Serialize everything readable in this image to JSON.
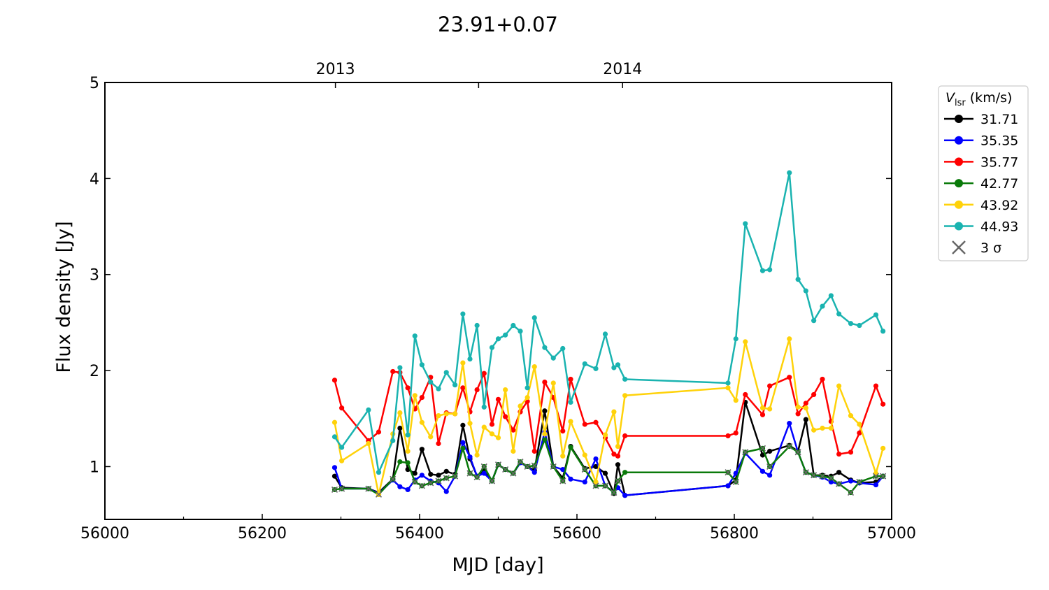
{
  "chart_data": {
    "type": "line",
    "title": "23.91+0.07",
    "xlabel": "MJD [day]",
    "ylabel": "Flux density [Jy]",
    "xlim": [
      56000,
      57000
    ],
    "ylim": [
      0.45,
      5
    ],
    "xticks": [
      56000,
      56200,
      56400,
      56600,
      56800,
      57000
    ],
    "xtick_labels": [
      "56000",
      "56200",
      "56400",
      "56600",
      "56800",
      "57000"
    ],
    "xminor": [
      56100,
      56300,
      56500,
      56700,
      56900
    ],
    "yticks": [
      1,
      2,
      3,
      4,
      5
    ],
    "ytick_labels": [
      "1",
      "2",
      "3",
      "4",
      "5"
    ],
    "top_axis": {
      "ticks": [
        56293,
        56475,
        56658
      ],
      "labels": [
        "2013",
        "",
        "2014"
      ]
    },
    "legend": {
      "title_main": "V",
      "title_sub": "lsr",
      "title_unit": " (km/s)",
      "placement": "outside-right",
      "sigma_label": "3 σ"
    },
    "x": [
      56292,
      56301,
      56335,
      56348,
      56366,
      56375,
      56385,
      56394,
      56403,
      56414,
      56424,
      56434,
      56445,
      56455,
      56464,
      56473,
      56482,
      56492,
      56500,
      56509,
      56519,
      56528,
      56537,
      56546,
      56559,
      56570,
      56582,
      56592,
      56610,
      56624,
      56636,
      56647,
      56652,
      56661,
      56792,
      56802,
      56814,
      56836,
      56845,
      56870,
      56881,
      56891,
      56901,
      56912,
      56923,
      56933,
      56948,
      56959,
      56980,
      56989
    ],
    "series": [
      {
        "name": "31.71",
        "color": "#000000",
        "values": [
          0.9,
          0.78,
          0.77,
          0.73,
          0.87,
          1.4,
          0.97,
          0.93,
          1.18,
          0.92,
          0.91,
          0.95,
          0.92,
          1.43,
          1.08,
          0.9,
          0.95,
          0.85,
          1.02,
          0.97,
          0.93,
          1.04,
          1.0,
          0.96,
          1.58,
          1.0,
          0.88,
          1.21,
          0.98,
          1.0,
          0.93,
          0.72,
          1.02,
          0.7,
          0.8,
          0.86,
          1.67,
          1.12,
          1.16,
          1.22,
          1.16,
          1.49,
          0.91,
          0.91,
          0.9,
          0.94,
          0.86,
          0.83,
          0.84,
          0.9
        ]
      },
      {
        "name": "35.35",
        "color": "#0000ff",
        "values": [
          0.99,
          0.77,
          0.77,
          0.72,
          0.86,
          0.79,
          0.76,
          0.86,
          0.91,
          0.85,
          0.83,
          0.74,
          0.9,
          1.25,
          1.1,
          0.9,
          0.93,
          0.85,
          1.02,
          0.97,
          0.93,
          1.04,
          1.0,
          0.94,
          1.36,
          1.0,
          0.97,
          0.87,
          0.84,
          1.08,
          0.8,
          0.73,
          0.78,
          0.7,
          0.8,
          0.93,
          1.14,
          0.95,
          0.91,
          1.45,
          1.15,
          0.94,
          0.91,
          0.89,
          0.84,
          0.82,
          0.85,
          0.83,
          0.81,
          0.9
        ]
      },
      {
        "name": "35.77",
        "color": "#ff0000",
        "values": [
          1.9,
          1.61,
          1.27,
          1.36,
          1.99,
          1.98,
          1.82,
          1.6,
          1.72,
          1.93,
          1.24,
          1.56,
          1.55,
          1.82,
          1.57,
          1.8,
          1.97,
          1.44,
          1.7,
          1.52,
          1.38,
          1.57,
          1.68,
          1.16,
          1.88,
          1.72,
          1.37,
          1.91,
          1.44,
          1.46,
          1.3,
          1.13,
          1.11,
          1.32,
          1.32,
          1.35,
          1.75,
          1.54,
          1.84,
          1.93,
          1.55,
          1.66,
          1.75,
          1.91,
          1.47,
          1.13,
          1.15,
          1.35,
          1.84,
          1.65
        ]
      },
      {
        "name": "42.77",
        "color": "#0a7a0a",
        "values": [
          0.76,
          0.77,
          0.77,
          0.71,
          0.87,
          1.05,
          1.04,
          0.84,
          0.8,
          0.83,
          0.85,
          0.88,
          0.9,
          1.19,
          0.93,
          0.89,
          1.0,
          0.85,
          1.02,
          0.97,
          0.93,
          1.05,
          1.0,
          1.01,
          1.28,
          1.0,
          0.85,
          1.2,
          0.97,
          0.8,
          0.8,
          0.73,
          0.85,
          0.94,
          0.94,
          0.84,
          1.15,
          1.19,
          1.0,
          1.21,
          1.15,
          0.94,
          0.91,
          0.9,
          0.88,
          0.82,
          0.73,
          0.84,
          0.9,
          0.9
        ]
      },
      {
        "name": "43.92",
        "color": "#ffd20a",
        "values": [
          1.46,
          1.06,
          1.24,
          0.71,
          1.34,
          1.56,
          1.16,
          1.74,
          1.46,
          1.31,
          1.53,
          1.55,
          1.55,
          2.08,
          1.45,
          1.12,
          1.41,
          1.34,
          1.3,
          1.8,
          1.16,
          1.63,
          1.72,
          2.04,
          1.34,
          1.87,
          1.11,
          1.47,
          1.12,
          0.84,
          1.33,
          1.57,
          1.21,
          1.74,
          1.82,
          1.69,
          2.3,
          1.61,
          1.6,
          2.33,
          1.62,
          1.61,
          1.38,
          1.4,
          1.4,
          1.84,
          1.53,
          1.44,
          0.93,
          1.19
        ]
      },
      {
        "name": "44.93",
        "color": "#1ab3b0",
        "values": [
          1.31,
          1.2,
          1.59,
          0.94,
          1.27,
          2.03,
          1.33,
          2.36,
          2.06,
          1.88,
          1.81,
          1.98,
          1.85,
          2.59,
          2.12,
          2.47,
          1.62,
          2.24,
          2.33,
          2.37,
          2.47,
          2.41,
          1.82,
          2.55,
          2.24,
          2.13,
          2.23,
          1.67,
          2.07,
          2.02,
          2.38,
          2.03,
          2.06,
          1.91,
          1.87,
          2.33,
          3.53,
          3.04,
          3.05,
          4.06,
          2.95,
          2.83,
          2.52,
          2.67,
          2.78,
          2.59,
          2.49,
          2.47,
          2.58,
          2.41
        ]
      }
    ],
    "sigma3_series": "42.77",
    "sigma3_indices": [
      0,
      1,
      2,
      3,
      4,
      7,
      8,
      9,
      10,
      11,
      12,
      14,
      15,
      16,
      17,
      18,
      19,
      20,
      21,
      22,
      23,
      25,
      26,
      28,
      29,
      30,
      31,
      32,
      34,
      35,
      36,
      37,
      38,
      39,
      40,
      41,
      42,
      43,
      44,
      45,
      46,
      47,
      48,
      49
    ]
  }
}
